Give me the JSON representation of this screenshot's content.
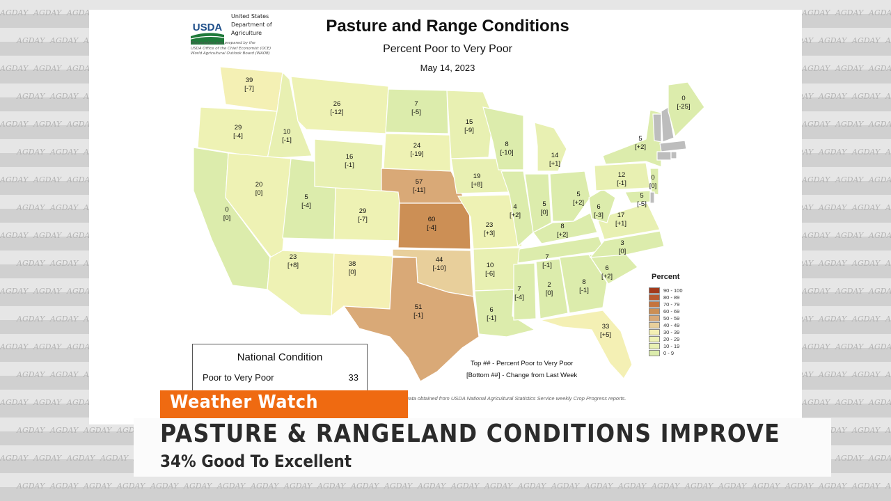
{
  "watermark": "AGDAY",
  "header": {
    "agency_line1": "United States",
    "agency_line2": "Department of",
    "agency_line3": "Agriculture",
    "logo_text": "USDA",
    "note_line1": "This product was prepared by the",
    "note_line2": "USDA Office of the Chief Economist (OCE)",
    "note_line3": "World Agricultural Outlook Board (WAOB)"
  },
  "map": {
    "title": "Pasture and Range Conditions",
    "subtitle": "Percent Poor to Very Poor",
    "date": "May 14, 2023",
    "key_top": "Top ## - Percent Poor to Very Poor",
    "key_bottom": "[Bottom ##] - Change from Last Week",
    "source": "Data obtained from USDA National Agricultural Statistics Service weekly Crop Progress reports.",
    "no_data_color": "#bdbdbd",
    "states": [
      {
        "abbr": "WA",
        "value": "39",
        "change": "[-7]"
      },
      {
        "abbr": "OR",
        "value": "29",
        "change": "[-4]"
      },
      {
        "abbr": "ID",
        "value": "10",
        "change": "[-1]"
      },
      {
        "abbr": "MT",
        "value": "26",
        "change": "[-12]"
      },
      {
        "abbr": "WY",
        "value": "16",
        "change": "[-1]"
      },
      {
        "abbr": "CA",
        "value": "0",
        "change": "[0]"
      },
      {
        "abbr": "NV",
        "value": "20",
        "change": "[0]"
      },
      {
        "abbr": "UT",
        "value": "5",
        "change": "[-4]"
      },
      {
        "abbr": "CO",
        "value": "29",
        "change": "[-7]"
      },
      {
        "abbr": "AZ",
        "value": "23",
        "change": "[+8]"
      },
      {
        "abbr": "NM",
        "value": "38",
        "change": "[0]"
      },
      {
        "abbr": "ND",
        "value": "7",
        "change": "[-5]"
      },
      {
        "abbr": "SD",
        "value": "24",
        "change": "[-19]"
      },
      {
        "abbr": "NE",
        "value": "57",
        "change": "[-11]"
      },
      {
        "abbr": "KS",
        "value": "60",
        "change": "[-4]"
      },
      {
        "abbr": "OK",
        "value": "44",
        "change": "[-10]"
      },
      {
        "abbr": "TX",
        "value": "51",
        "change": "[-1]"
      },
      {
        "abbr": "MN",
        "value": "15",
        "change": "[-9]"
      },
      {
        "abbr": "IA",
        "value": "19",
        "change": "[+8]"
      },
      {
        "abbr": "MO",
        "value": "23",
        "change": "[+3]"
      },
      {
        "abbr": "AR",
        "value": "10",
        "change": "[-6]"
      },
      {
        "abbr": "LA",
        "value": "6",
        "change": "[-1]"
      },
      {
        "abbr": "WI",
        "value": "8",
        "change": "[-10]"
      },
      {
        "abbr": "IL",
        "value": "4",
        "change": "[+2]"
      },
      {
        "abbr": "MI",
        "value": "14",
        "change": "[+1]"
      },
      {
        "abbr": "IN",
        "value": "5",
        "change": "[0]"
      },
      {
        "abbr": "OH",
        "value": "5",
        "change": "[+2]"
      },
      {
        "abbr": "KY",
        "value": "8",
        "change": "[+2]"
      },
      {
        "abbr": "TN",
        "value": "7",
        "change": "[-1]"
      },
      {
        "abbr": "MS",
        "value": "7",
        "change": "[-4]"
      },
      {
        "abbr": "AL",
        "value": "2",
        "change": "[0]"
      },
      {
        "abbr": "GA",
        "value": "8",
        "change": "[-1]"
      },
      {
        "abbr": "FL",
        "value": "33",
        "change": "[+5]"
      },
      {
        "abbr": "SC",
        "value": "6",
        "change": "[+2]"
      },
      {
        "abbr": "NC",
        "value": "3",
        "change": "[0]"
      },
      {
        "abbr": "VA",
        "value": "17",
        "change": "[+1]"
      },
      {
        "abbr": "WV",
        "value": "6",
        "change": "[-3]"
      },
      {
        "abbr": "PA",
        "value": "12",
        "change": "[-1]"
      },
      {
        "abbr": "NY",
        "value": "5",
        "change": "[+2]"
      },
      {
        "abbr": "NJ",
        "value": "0",
        "change": "[0]"
      },
      {
        "abbr": "MD",
        "value": "5",
        "change": "[-5]"
      },
      {
        "abbr": "ME",
        "value": "0",
        "change": "[-25]"
      }
    ]
  },
  "legend": {
    "title": "Percent",
    "items": [
      {
        "label": "90 - 100",
        "color": "#a23a1c"
      },
      {
        "label": "80 - 89",
        "color": "#b85a30"
      },
      {
        "label": "70 - 79",
        "color": "#c4743e"
      },
      {
        "label": "60 - 69",
        "color": "#cc8f55"
      },
      {
        "label": "50 - 59",
        "color": "#d9a977"
      },
      {
        "label": "40 - 49",
        "color": "#e8cf9b"
      },
      {
        "label": "30 - 39",
        "color": "#f4f0b4"
      },
      {
        "label": "20 - 29",
        "color": "#eef2b4"
      },
      {
        "label": "10 - 19",
        "color": "#e8f0b2"
      },
      {
        "label": "0 - 9",
        "color": "#dcecac"
      }
    ]
  },
  "national": {
    "title": "National Condition",
    "label": "Poor to Very Poor",
    "value": "33"
  },
  "lower_third": {
    "tag": "Weather Watch",
    "headline": "PASTURE & RANGELAND CONDITIONS IMPROVE",
    "subhead": "34% Good To Excellent"
  }
}
